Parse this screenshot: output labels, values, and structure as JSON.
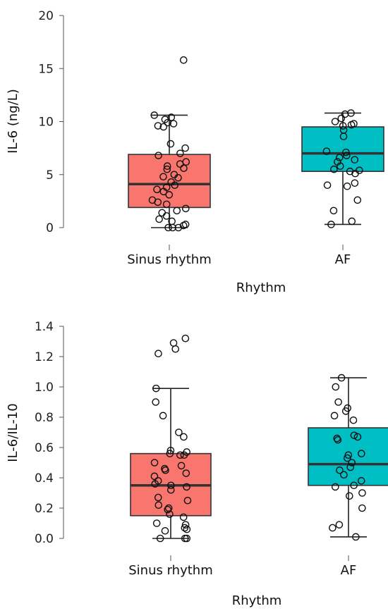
{
  "chart_data": [
    {
      "type": "box",
      "xlabel": "Rhythm",
      "ylabel": "IL-6 (ng/L)",
      "ylim": [
        0,
        20
      ],
      "yticks": [
        "0",
        "5",
        "10",
        "15",
        "20"
      ],
      "categories": [
        "Sinus rhythm",
        "AF"
      ],
      "colors": [
        "#F8766D",
        "#00BFC4"
      ],
      "grid": false,
      "legend": "none",
      "boxes": [
        {
          "category": "Sinus rhythm",
          "min": 0.0,
          "q1": 1.9,
          "median": 4.1,
          "q3": 6.9,
          "max": 10.6,
          "points": [
            15.8,
            10.6,
            10.4,
            10.2,
            9.9,
            9.8,
            9.6,
            9.5,
            7.9,
            7.5,
            7.0,
            6.8,
            6.2,
            6.0,
            5.8,
            5.6,
            5.5,
            5.0,
            4.8,
            4.7,
            4.3,
            4.0,
            3.8,
            3.6,
            3.4,
            3.1,
            2.6,
            2.4,
            2.2,
            1.8,
            1.6,
            1.4,
            1.1,
            0.8,
            0.6,
            0.3,
            0.2,
            0.0,
            0.0,
            0.0
          ]
        },
        {
          "category": "AF",
          "min": 0.3,
          "q1": 5.3,
          "median": 7.0,
          "q3": 9.5,
          "max": 10.8,
          "points": [
            10.8,
            10.7,
            10.3,
            10.0,
            9.8,
            9.7,
            9.6,
            9.2,
            8.6,
            7.2,
            7.1,
            6.8,
            6.6,
            6.4,
            6.2,
            5.8,
            5.5,
            5.4,
            5.3,
            5.1,
            4.2,
            4.0,
            3.9,
            2.6,
            1.6,
            0.6,
            0.3
          ]
        }
      ]
    },
    {
      "type": "box",
      "xlabel": "Rhythm",
      "ylabel": "IL-6/IL-10",
      "ylim": [
        0,
        1.4
      ],
      "yticks": [
        "0.0",
        "0.2",
        "0.4",
        "0.6",
        "0.8",
        "1.0",
        "1.2",
        "1.4"
      ],
      "categories": [
        "Sinus rhythm",
        "AF"
      ],
      "colors": [
        "#F8766D",
        "#00BFC4"
      ],
      "grid": false,
      "legend": "none",
      "boxes": [
        {
          "category": "Sinus rhythm",
          "min": 0.0,
          "q1": 0.15,
          "median": 0.35,
          "q3": 0.56,
          "max": 0.99,
          "points": [
            1.32,
            1.29,
            1.25,
            1.22,
            0.99,
            0.9,
            0.81,
            0.7,
            0.67,
            0.58,
            0.57,
            0.56,
            0.55,
            0.55,
            0.5,
            0.48,
            0.46,
            0.45,
            0.43,
            0.41,
            0.38,
            0.36,
            0.35,
            0.34,
            0.32,
            0.27,
            0.25,
            0.22,
            0.2,
            0.19,
            0.16,
            0.14,
            0.1,
            0.09,
            0.07,
            0.06,
            0.05,
            0.0,
            0.0,
            0.0
          ]
        },
        {
          "category": "AF",
          "min": 0.01,
          "q1": 0.35,
          "median": 0.49,
          "q3": 0.73,
          "max": 1.06,
          "points": [
            1.06,
            1.0,
            0.9,
            0.86,
            0.84,
            0.81,
            0.78,
            0.68,
            0.67,
            0.66,
            0.65,
            0.56,
            0.55,
            0.53,
            0.5,
            0.47,
            0.45,
            0.42,
            0.38,
            0.35,
            0.34,
            0.3,
            0.28,
            0.2,
            0.09,
            0.07,
            0.01
          ]
        }
      ]
    }
  ]
}
